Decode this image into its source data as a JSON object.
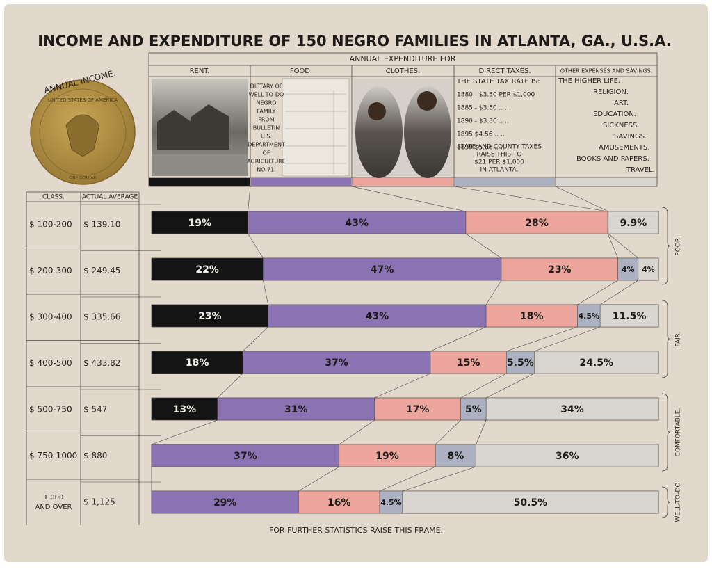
{
  "chart_data": {
    "type": "bar",
    "title": "INCOME AND EXPENDITURE OF 150 NEGRO FAMILIES IN ATLANTA, GA., U.S.A.",
    "header": "ANNUAL EXPENDITURE FOR",
    "coin": {
      "label": "ANNUAL INCOME.",
      "rim": "UNITED STATES OF AMERICA",
      "bottom": "ONE DOLLAR"
    },
    "class_header": "CLASS.",
    "average_header": "ACTUAL AVERAGE",
    "categories": [
      "$ 100-200",
      "$ 200-300",
      "$ 300-400",
      "$ 400-500",
      "$ 500-750",
      "$ 750-1000",
      "1,000 AND OVER"
    ],
    "actual_average": [
      "$ 139.10",
      "$ 249.45",
      "$ 335.66",
      "$ 433.82",
      "$ 547",
      "$ 880",
      "$ 1,125"
    ],
    "xlim": [
      0,
      100
    ],
    "series": [
      {
        "name": "RENT.",
        "color": "#141414",
        "values": [
          19,
          22,
          23,
          18,
          13,
          null,
          null
        ],
        "value_labels": [
          "19%",
          "22%",
          "23%",
          "18%",
          "13%",
          null,
          null
        ]
      },
      {
        "name": "FOOD.",
        "color": "#8b72b2",
        "values": [
          43,
          47,
          43,
          37,
          31,
          37,
          29
        ],
        "value_labels": [
          "43%",
          "47%",
          "43%",
          "37%",
          "31%",
          "37%",
          "29%"
        ]
      },
      {
        "name": "CLOTHES.",
        "color": "#eba59c",
        "values": [
          28,
          23,
          18,
          15,
          17,
          19,
          16
        ],
        "value_labels": [
          "28%",
          "23%",
          "18%",
          "15%",
          "17%",
          "19%",
          "16%"
        ]
      },
      {
        "name": "DIRECT TAXES.",
        "color": "#abb1c0",
        "values": [
          0.1,
          4,
          4.5,
          5.5,
          5,
          8,
          4.5
        ],
        "value_labels": [
          null,
          "4%",
          "4.5%",
          "5.5%",
          "5%",
          "8%",
          "4.5%"
        ]
      },
      {
        "name": "OTHER EXPENSES AND SAVINGS.",
        "color": "#d9d6d1",
        "values": [
          9.9,
          4,
          11.5,
          24.5,
          34,
          36,
          50.5
        ],
        "value_labels": [
          "9.9%",
          "4%",
          "11.5%",
          "24.5%",
          "34%",
          "36%",
          "50.5%"
        ]
      }
    ],
    "groups": [
      {
        "label": "POOR.",
        "categories": [
          "$ 100-200",
          "$ 200-300"
        ]
      },
      {
        "label": "FAIR.",
        "categories": [
          "$ 300-400",
          "$ 400-500"
        ]
      },
      {
        "label": "COMFORTABLE.",
        "categories": [
          "$ 500-750",
          "$ 750-1000"
        ]
      },
      {
        "label": "WELL-TO-DO",
        "categories": [
          "1,000 AND OVER"
        ]
      }
    ],
    "food_note": [
      "DIETARY OF",
      "WELL-TO-DO",
      "NEGRO",
      "FAMILY",
      "FROM",
      "BULLETIN",
      "U.S.",
      "DEPARTMENT",
      "OF",
      "AGRICULTURE",
      "NO 71."
    ],
    "tax_note": [
      "THE STATE TAX RATE IS:",
      "1880 - $3.50  PER $1,000",
      "1885 - $3.50     ..      ..",
      "1890 - $3.86     ..      ..",
      "1895    $4.56     ..      ..",
      "1899    $5.36     ..      ..",
      "STATE AND COUNTY TAXES",
      "RAISE THIS TO",
      "$21 PER $1,000",
      "IN ATLANTA."
    ],
    "other_note": [
      "THE HIGHER LIFE.",
      "RELIGION.",
      "ART.",
      "EDUCATION.",
      "SICKNESS.",
      "SAVINGS.",
      "AMUSEMENTS.",
      "BOOKS AND PAPERS.",
      "TRAVEL."
    ],
    "footer": "FOR FURTHER STATISTICS RAISE THIS FRAME."
  }
}
